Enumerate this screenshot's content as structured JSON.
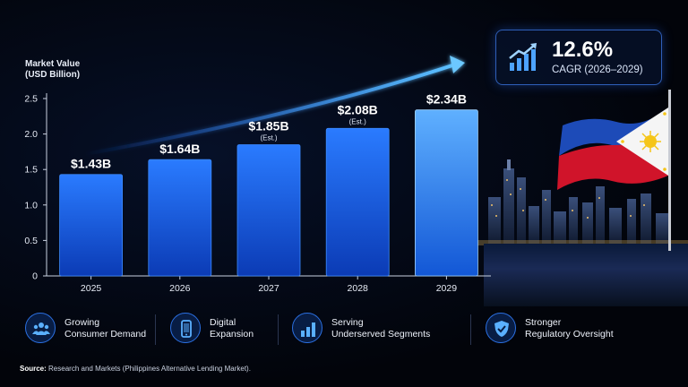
{
  "chart_data": {
    "type": "bar",
    "ylabel": "Market Value\n(USD Billion)",
    "ylabel_lines": [
      "Market Value",
      "(USD Billion)"
    ],
    "categories": [
      "2025",
      "2026",
      "2027",
      "2028",
      "2029"
    ],
    "values": [
      1.43,
      1.64,
      1.85,
      2.08,
      2.34
    ],
    "data_labels": [
      "$1.43B",
      "$1.64B",
      "$1.85B",
      "$2.08B",
      "$2.34B"
    ],
    "notes": [
      "",
      "",
      "(Est.)",
      "(Est.)",
      ""
    ],
    "yticks": [
      "0",
      "0.5",
      "1.0",
      "1.5",
      "2.0",
      "2.5"
    ],
    "ytick_values": [
      0,
      0.5,
      1.0,
      1.5,
      2.0,
      2.5
    ],
    "ylim": [
      0,
      2.5
    ],
    "grid": false,
    "bar_color": "#1f6bff"
  },
  "cagr": {
    "value": "12.6%",
    "label": "CAGR (2026–2029)",
    "icon": "growth-chart-icon"
  },
  "drivers": [
    {
      "icon": "people-icon",
      "line1": "Growing",
      "line2": "Consumer Demand"
    },
    {
      "icon": "smartphone-icon",
      "line1": "Digital",
      "line2": "Expansion"
    },
    {
      "icon": "bar-chart-icon",
      "line1": "Serving",
      "line2": "Underserved Segments"
    },
    {
      "icon": "shield-check-icon",
      "line1": "Stronger",
      "line2": "Regulatory Oversight"
    }
  ],
  "source": {
    "label": "Source:",
    "text": "Research and Markets (Philippines Alternative Lending Market)."
  },
  "colors": {
    "accent": "#1f6bff",
    "background": "#02040a",
    "flag_blue": "#0038a8",
    "flag_red": "#ce1126",
    "flag_white": "#ffffff",
    "flag_yellow": "#fcd116"
  }
}
